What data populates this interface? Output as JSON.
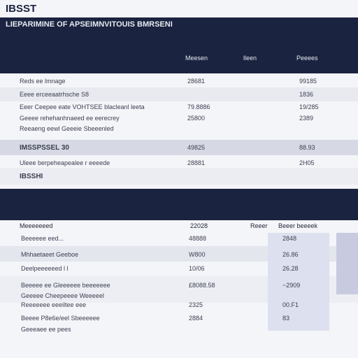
{
  "header": {
    "brand": "IBSST"
  },
  "banner": {
    "title": "LIEPARIMINE OF APSEIMNVITOUIS BMRSENI"
  },
  "table1": {
    "columns": [
      "Meesen",
      "lleen",
      "Peeees"
    ],
    "rows": [
      {
        "label": "Reds ee lmnage",
        "amount": "28681",
        "total": "99185"
      },
      {
        "label": "Eeee erceeaatrhsche S8",
        "total": "1836"
      },
      {
        "label": "Eeer Ceepee eate VOHTSEE blacleanl leeta",
        "amount": "79.8886",
        "total": "19/285"
      },
      {
        "label": "Geeee rehehanhnaeed ee eerecrey",
        "amount": "25800",
        "total": "2389"
      },
      {
        "label": "Reeaeng eewl Geeeie Sbeeenled"
      },
      {
        "label": "IMSSPSSEL 30",
        "amount": "49825",
        "total": "88.93"
      },
      {
        "label": "Uleee berpeheapealee r eeeede",
        "amount": "28881",
        "total": "2H05"
      },
      {
        "label": "IBSSHI"
      }
    ]
  },
  "table2": {
    "columns": [
      "Meeeeeeed",
      "22028",
      "Reeer",
      "Beeer beeeek"
    ],
    "rows": [
      {
        "label": "Beeeeee eed...",
        "amount": "48888",
        "total": "2848"
      },
      {
        "label": "Mhhaetaeet Geeboe",
        "amount": "W800",
        "total": "26.86"
      },
      {
        "label": "Deelpeeeeeed l l",
        "amount": "10/06",
        "total": "26.28"
      },
      {
        "label": "Beeeee ee Gleeeeee beeeeeee",
        "amount": "£8088.58",
        "total": "~2909"
      },
      {
        "label": "Geeeee Cheepeeee Weeeeel"
      },
      {
        "label": "Reeeeeee eeeiltee eee",
        "amount": "2325",
        "total": "00.F1"
      },
      {
        "label": "Beeee P8e6e/eel Sbeeeeee",
        "amount": "2884",
        "total": "83"
      },
      {
        "label": "Geeeaee ee pees"
      }
    ]
  }
}
